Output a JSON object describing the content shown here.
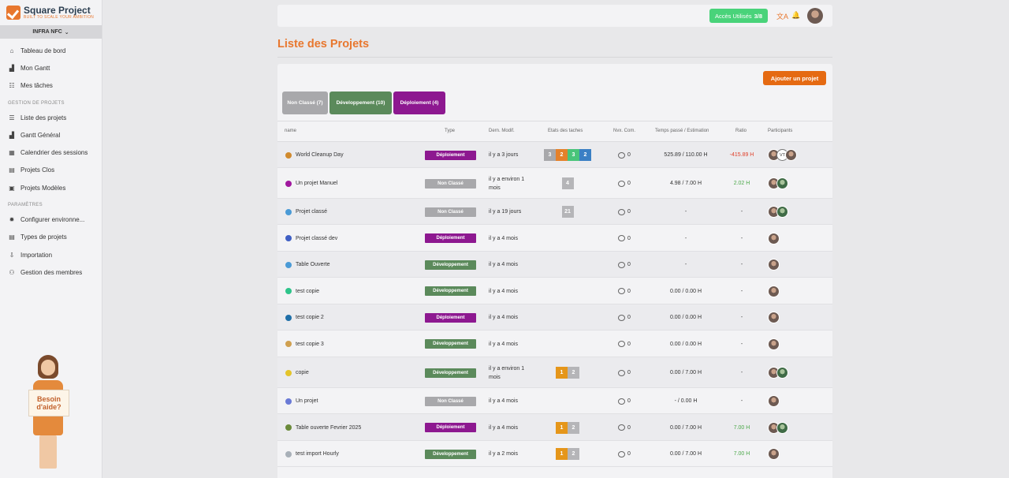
{
  "sidebar": {
    "logo_title": "Square Project",
    "logo_sub": "BUILT TO SCALE YOUR AMBITION",
    "workspace": "INFRA NFC",
    "main_items": [
      {
        "label": "Tableau de bord",
        "icon": "home-icon"
      },
      {
        "label": "Mon Gantt",
        "icon": "gantt-icon"
      },
      {
        "label": "Mes tâches",
        "icon": "tasks-icon"
      }
    ],
    "section_projects": "GESTION DE PROJETS",
    "project_items": [
      {
        "label": "Liste des projets",
        "icon": "list-icon"
      },
      {
        "label": "Gantt Général",
        "icon": "gantt-icon"
      },
      {
        "label": "Calendrier des sessions",
        "icon": "calendar-icon"
      },
      {
        "label": "Projets Clos",
        "icon": "archive-icon"
      },
      {
        "label": "Projets Modèles",
        "icon": "template-icon"
      }
    ],
    "section_params": "PARAMÈTRES",
    "param_items": [
      {
        "label": "Configurer environne...",
        "icon": "gear-icon"
      },
      {
        "label": "Types de projets",
        "icon": "table-icon"
      },
      {
        "label": "Importation",
        "icon": "import-icon"
      },
      {
        "label": "Gestion des membres",
        "icon": "users-icon"
      }
    ],
    "helper_text_1": "Besoin",
    "helper_text_2": "d'aide?"
  },
  "topbar": {
    "access_label": "Accès Utilisés",
    "access_value": "3/8"
  },
  "page": {
    "title": "Liste des Projets",
    "add_button": "Ajouter un projet"
  },
  "filters": [
    {
      "label": "Non Classé (7)"
    },
    {
      "label": "Développement (10)"
    },
    {
      "label": "Déploiement (4)"
    }
  ],
  "columns": {
    "name": "name",
    "type": "Type",
    "modif": "Dern. Modif.",
    "states": "Etats des taches",
    "comments": "Nvx. Com.",
    "time": "Temps passé / Estimation",
    "ratio": "Ratio",
    "participants": "Participants"
  },
  "colors": {
    "accent": "#e8772e",
    "deploiement": "#8d1890",
    "developpement": "#5b8a5b",
    "non_classe": "#a8a8ab"
  },
  "projects": [
    {
      "name": "World Cleanup Day",
      "dot": "#d08a2e",
      "type": "Déploiement",
      "kind": "dep",
      "modif": "il y a 3 jours",
      "states": [
        {
          "v": "3",
          "c": "#a8a8ab"
        },
        {
          "v": "2",
          "c": "#e5812a"
        },
        {
          "v": "3",
          "c": "#49c47a"
        },
        {
          "v": "2",
          "c": "#3a7fc4"
        }
      ],
      "comments": "0",
      "time": "525.89 /  110.00 H",
      "ratio": "-415.89 H",
      "ratio_kind": "neg",
      "participants": [
        "p",
        "vt",
        "p"
      ]
    },
    {
      "name": "Un projet Manuel",
      "dot": "#a0189e",
      "type": "Non Classé",
      "kind": "non",
      "modif": "il y a environ 1 mois",
      "states": [
        {
          "v": "4",
          "c": "#b5b5b8"
        }
      ],
      "comments": "0",
      "time": "4.98 /  7.00 H",
      "ratio": "2.02 H",
      "ratio_kind": "pos",
      "participants": [
        "p",
        "g"
      ]
    },
    {
      "name": "Projet classé",
      "dot": "#4a9ad6",
      "type": "Non Classé",
      "kind": "non",
      "modif": "il y a 19 jours",
      "states": [
        {
          "v": "21",
          "c": "#b5b5b8"
        }
      ],
      "comments": "0",
      "time": "-",
      "ratio": "-",
      "ratio_kind": "",
      "participants": [
        "p",
        "g"
      ]
    },
    {
      "name": "Projet classé dev",
      "dot": "#3f5fc4",
      "type": "Déploiement",
      "kind": "dep",
      "modif": "il y a 4 mois",
      "states": [],
      "comments": "0",
      "time": "-",
      "ratio": "-",
      "ratio_kind": "",
      "participants": [
        "p"
      ]
    },
    {
      "name": "Table Ouverte",
      "dot": "#4a9ad6",
      "type": "Développement",
      "kind": "dev",
      "modif": "il y a 4 mois",
      "states": [],
      "comments": "0",
      "time": "-",
      "ratio": "-",
      "ratio_kind": "",
      "participants": [
        "p"
      ]
    },
    {
      "name": "test copie",
      "dot": "#2ec48a",
      "type": "Développement",
      "kind": "dev",
      "modif": "il y a 4 mois",
      "states": [],
      "comments": "0",
      "time": "0.00 /  0.00 H",
      "ratio": "-",
      "ratio_kind": "",
      "participants": [
        "p"
      ]
    },
    {
      "name": "test copie 2",
      "dot": "#1f6fa8",
      "type": "Déploiement",
      "kind": "dep",
      "modif": "il y a 4 mois",
      "states": [],
      "comments": "0",
      "time": "0.00 /  0.00 H",
      "ratio": "-",
      "ratio_kind": "",
      "participants": [
        "p"
      ]
    },
    {
      "name": "test copie 3",
      "dot": "#d0a050",
      "type": "Développement",
      "kind": "dev",
      "modif": "il y a 4 mois",
      "states": [],
      "comments": "0",
      "time": "0.00 /  0.00 H",
      "ratio": "-",
      "ratio_kind": "",
      "participants": [
        "p"
      ]
    },
    {
      "name": "copie",
      "dot": "#e4c42a",
      "type": "Développement",
      "kind": "dev",
      "modif": "il y a environ 1 mois",
      "states": [
        {
          "v": "1",
          "c": "#e5961a"
        },
        {
          "v": "2",
          "c": "#b5b5b8"
        }
      ],
      "comments": "0",
      "time": "0.00 /  7.00 H",
      "ratio": "-",
      "ratio_kind": "",
      "participants": [
        "p",
        "g"
      ]
    },
    {
      "name": "Un projet",
      "dot": "#6a7ad6",
      "type": "Non Classé",
      "kind": "non",
      "modif": "il y a 4 mois",
      "states": [],
      "comments": "0",
      "time": "- /  0.00 H",
      "ratio": "-",
      "ratio_kind": "",
      "participants": [
        "p"
      ]
    },
    {
      "name": "Table ouverte Fevrier 2025",
      "dot": "#6a8a3a",
      "type": "Déploiement",
      "kind": "dep",
      "modif": "il y a 4 mois",
      "states": [
        {
          "v": "1",
          "c": "#e5961a"
        },
        {
          "v": "2",
          "c": "#b5b5b8"
        }
      ],
      "comments": "0",
      "time": "0.00 /  7.00 H",
      "ratio": "7.00 H",
      "ratio_kind": "pos",
      "participants": [
        "p",
        "g"
      ]
    },
    {
      "name": "test import Hourly",
      "dot": "#a8b0b8",
      "type": "Développement",
      "kind": "dev",
      "modif": "il y a 2 mois",
      "states": [
        {
          "v": "1",
          "c": "#e5961a"
        },
        {
          "v": "2",
          "c": "#b5b5b8"
        }
      ],
      "comments": "0",
      "time": "0.00 /  7.00 H",
      "ratio": "7.00 H",
      "ratio_kind": "pos",
      "participants": [
        "p"
      ]
    }
  ]
}
